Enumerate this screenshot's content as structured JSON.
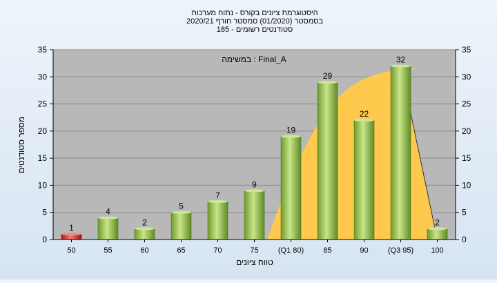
{
  "chart_data": {
    "type": "bar",
    "title_lines": [
      "היסטוגרמת ציונים בקורס - נתוח מערכות",
      "בסמסטר  (01/2020)  סמסטר חורף  2020/21",
      "סטודנטים רשומים - 185"
    ],
    "annotation": "במשימה : Final_A",
    "xlabel": "טווח ציונים",
    "ylabel": "מספר סטודנטים",
    "categories": [
      "50",
      "55",
      "60",
      "65",
      "70",
      "75",
      "(Q1 80)",
      "85",
      "90",
      "(Q3 95)",
      "100"
    ],
    "values": [
      1,
      4,
      2,
      5,
      7,
      9,
      19,
      29,
      22,
      32,
      2
    ],
    "ylim": [
      0,
      35
    ],
    "yticks": [
      0,
      5,
      10,
      15,
      20,
      25,
      30,
      35
    ],
    "grid": true,
    "bar_colors": [
      "#d92b2b",
      "#8fbf4a",
      "#8fbf4a",
      "#8fbf4a",
      "#8fbf4a",
      "#8fbf4a",
      "#8fbf4a",
      "#8fbf4a",
      "#8fbf4a",
      "#8fbf4a",
      "#8fbf4a"
    ],
    "colors": {
      "plot_background": "#b8b8b8",
      "interquartile_area": "#ffc94d",
      "bar_green": "#8fbf4a",
      "bar_red": "#d92b2b"
    }
  }
}
